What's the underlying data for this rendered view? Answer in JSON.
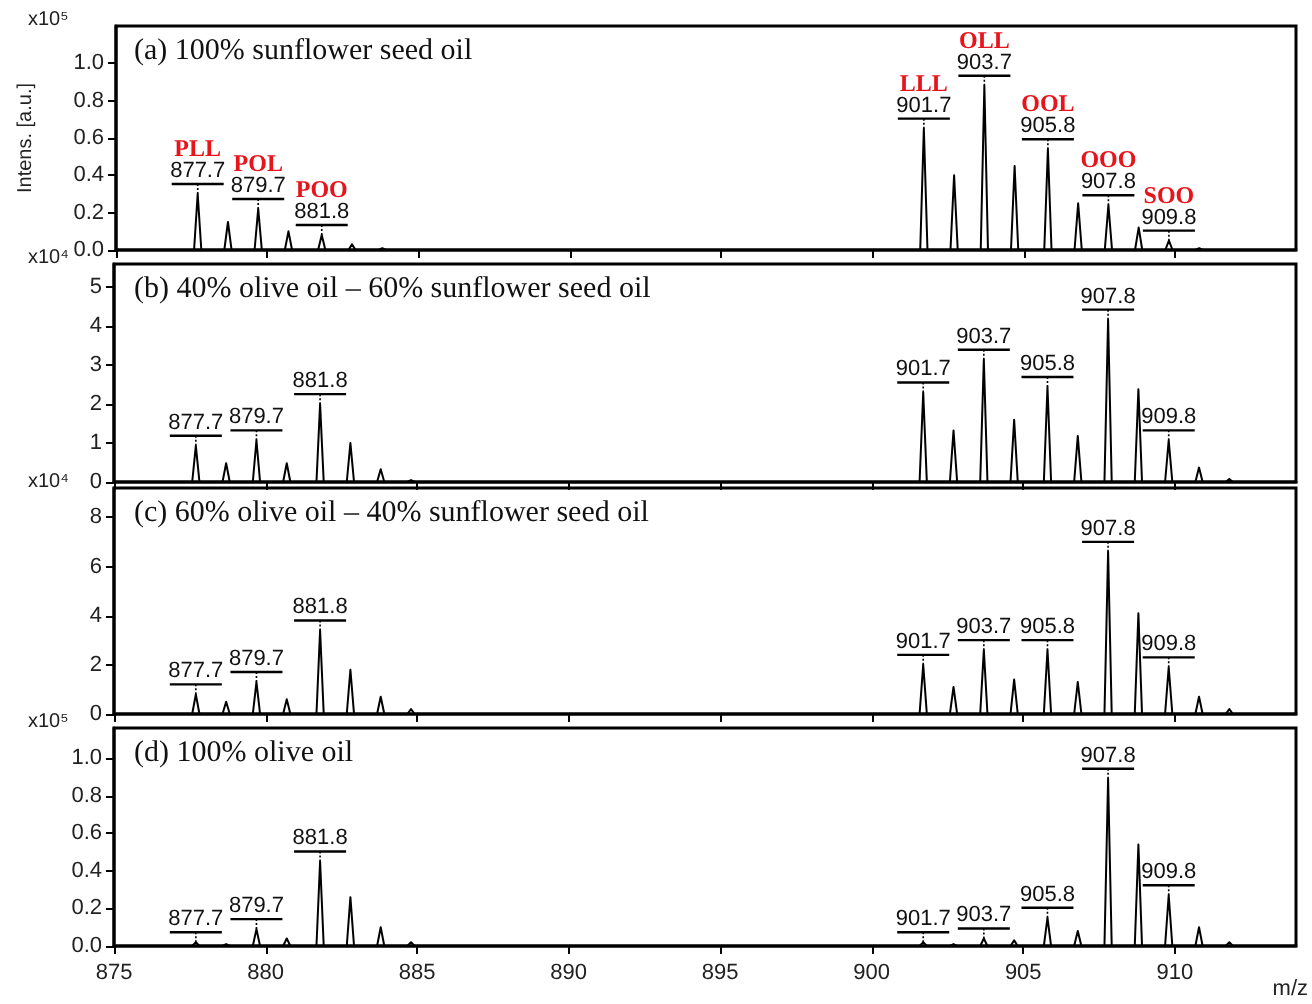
{
  "chart_data": [
    {
      "type": "line",
      "title": "(a) 100% sunflower seed oil",
      "ylabel": "Intens. [a.u.]",
      "xlim": [
        875,
        914
      ],
      "xticks": [
        875,
        880,
        885,
        890,
        895,
        900,
        905,
        910
      ],
      "ylim": [
        0,
        1.2
      ],
      "yticks": [
        {
          "value": 0,
          "label": "0.0"
        },
        {
          "value": 0.2,
          "label": "0.2"
        },
        {
          "value": 0.4,
          "label": "0.4"
        },
        {
          "value": 0.6,
          "label": "0.6"
        },
        {
          "value": 0.8,
          "label": "0.8"
        },
        {
          "value": 1,
          "label": "1.0"
        }
      ],
      "tick_labels": "y",
      "x": [
        875,
        877.58,
        877.7,
        877.82,
        878.58,
        878.7,
        878.82,
        879.58,
        879.7,
        879.82,
        880.58,
        880.7,
        880.82,
        881.68,
        881.8,
        881.92,
        882.68,
        882.8,
        882.92,
        883.68,
        883.8,
        883.92,
        901.58,
        901.7,
        901.82,
        902.58,
        902.7,
        902.82,
        903.58,
        903.7,
        903.82,
        904.58,
        904.7,
        904.82,
        905.68,
        905.8,
        905.92,
        906.68,
        906.8,
        906.92,
        907.68,
        907.8,
        907.92,
        908.68,
        908.8,
        908.92,
        909.68,
        909.8,
        909.92,
        910.68,
        910.8,
        910.92,
        914
      ],
      "series": [
        {
          "color": "#000000",
          "values": [
            0,
            0,
            0.3,
            0,
            0,
            0.15,
            0,
            0,
            0.22,
            0,
            0,
            0.1,
            0,
            0,
            0.08,
            0,
            0,
            0.03,
            0,
            0,
            0.01,
            0,
            0,
            0.65,
            0,
            0,
            0.4,
            0,
            0,
            0.88,
            0,
            0,
            0.45,
            0,
            0,
            0.54,
            0,
            0,
            0.25,
            0,
            0,
            0.24,
            0,
            0,
            0.12,
            0,
            0,
            0.05,
            0,
            0,
            0.01,
            0,
            0
          ]
        }
      ],
      "annotations": [
        "x10⁵",
        {
          "text": "877.7",
          "x": 877.7,
          "y": 0.3
        },
        {
          "text": "PLL",
          "x": 877.7,
          "y": 0.3
        },
        {
          "text": "879.7",
          "x": 879.7,
          "y": 0.22
        },
        {
          "text": "POL",
          "x": 879.7,
          "y": 0.22
        },
        {
          "text": "881.8",
          "x": 881.8,
          "y": 0.08
        },
        {
          "text": "POO",
          "x": 881.8,
          "y": 0.08
        },
        {
          "text": "901.7",
          "x": 901.7,
          "y": 0.65
        },
        {
          "text": "LLL",
          "x": 901.7,
          "y": 0.65
        },
        {
          "text": "903.7",
          "x": 903.7,
          "y": 0.88
        },
        {
          "text": "OLL",
          "x": 903.7,
          "y": 0.88
        },
        {
          "text": "905.8",
          "x": 905.8,
          "y": 0.54
        },
        {
          "text": "OOL",
          "x": 905.8,
          "y": 0.54
        },
        {
          "text": "907.8",
          "x": 907.8,
          "y": 0.24
        },
        {
          "text": "OOO",
          "x": 907.8,
          "y": 0.24
        },
        {
          "text": "909.8",
          "x": 909.8,
          "y": 0.05
        },
        {
          "text": "SOO",
          "x": 909.8,
          "y": 0.05
        }
      ]
    },
    {
      "type": "line",
      "title": "(b) 40% olive oil – 60% sunflower seed oil",
      "xlim": [
        875,
        914
      ],
      "xticks": [
        875,
        880,
        885,
        890,
        895,
        900,
        905,
        910
      ],
      "ylim": [
        0,
        5.6
      ],
      "yticks": [
        0,
        1,
        2,
        3,
        4,
        5
      ],
      "tick_labels": "y",
      "x": [
        875,
        877.58,
        877.7,
        877.82,
        878.58,
        878.7,
        878.82,
        879.58,
        879.7,
        879.82,
        880.58,
        880.7,
        880.82,
        881.68,
        881.8,
        881.92,
        882.68,
        882.8,
        882.92,
        883.68,
        883.8,
        883.92,
        884.68,
        884.8,
        884.92,
        901.58,
        901.7,
        901.82,
        902.58,
        902.7,
        902.82,
        903.58,
        903.7,
        903.82,
        904.58,
        904.7,
        904.82,
        905.68,
        905.8,
        905.92,
        906.68,
        906.8,
        906.92,
        907.68,
        907.8,
        907.92,
        908.68,
        908.8,
        908.92,
        909.68,
        909.8,
        909.92,
        910.68,
        910.8,
        910.92,
        911.68,
        911.8,
        911.92,
        914
      ],
      "series": [
        {
          "color": "#000000",
          "values": [
            0,
            0,
            0.93,
            0,
            0,
            0.48,
            0,
            0,
            1.07,
            0,
            0,
            0.48,
            0,
            0,
            2.0,
            0,
            0,
            1.0,
            0,
            0,
            0.33,
            0,
            0,
            0.05,
            0,
            0,
            2.3,
            0,
            0,
            1.32,
            0,
            0,
            3.14,
            0,
            0,
            1.6,
            0,
            0,
            2.44,
            0,
            0,
            1.18,
            0,
            0,
            4.17,
            0,
            0,
            2.38,
            0,
            0,
            1.07,
            0,
            0,
            0.37,
            0,
            0,
            0.08,
            0,
            0
          ]
        }
      ],
      "annotations": [
        "x10⁴",
        {
          "text": "877.7",
          "x": 877.7,
          "y": 0.93
        },
        {
          "text": "879.7",
          "x": 879.7,
          "y": 1.07
        },
        {
          "text": "881.8",
          "x": 881.8,
          "y": 2.0
        },
        {
          "text": "901.7",
          "x": 901.7,
          "y": 2.3
        },
        {
          "text": "903.7",
          "x": 903.7,
          "y": 3.14
        },
        {
          "text": "905.8",
          "x": 905.8,
          "y": 2.44
        },
        {
          "text": "907.8",
          "x": 907.8,
          "y": 4.17
        },
        {
          "text": "909.8",
          "x": 909.8,
          "y": 1.07
        }
      ]
    },
    {
      "type": "line",
      "title": "(c) 60% olive oil – 40% sunflower seed oil",
      "xlim": [
        875,
        914
      ],
      "xticks": [
        875,
        880,
        885,
        890,
        895,
        900,
        905,
        910
      ],
      "ylim": [
        0,
        9.2
      ],
      "yticks": [
        0,
        2,
        4,
        6,
        8
      ],
      "tick_labels": "y",
      "x": [
        875,
        877.58,
        877.7,
        877.82,
        878.58,
        878.7,
        878.82,
        879.58,
        879.7,
        879.82,
        880.58,
        880.7,
        880.82,
        881.68,
        881.8,
        881.92,
        882.68,
        882.8,
        882.92,
        883.68,
        883.8,
        883.92,
        884.68,
        884.8,
        884.92,
        901.58,
        901.7,
        901.82,
        902.58,
        902.7,
        902.82,
        903.58,
        903.7,
        903.82,
        904.58,
        904.7,
        904.82,
        905.68,
        905.8,
        905.92,
        906.68,
        906.8,
        906.92,
        907.68,
        907.8,
        907.92,
        908.68,
        908.8,
        908.92,
        909.68,
        909.8,
        909.92,
        910.68,
        910.8,
        910.92,
        911.68,
        911.8,
        911.92,
        914
      ],
      "series": [
        {
          "color": "#000000",
          "values": [
            0,
            0,
            0.8,
            0,
            0,
            0.5,
            0,
            0,
            1.3,
            0,
            0,
            0.6,
            0,
            0,
            3.4,
            0,
            0,
            1.8,
            0,
            0,
            0.7,
            0,
            0,
            0.2,
            0,
            0,
            2.0,
            0,
            0,
            1.1,
            0,
            0,
            2.6,
            0,
            0,
            1.4,
            0,
            0,
            2.6,
            0,
            0,
            1.3,
            0,
            0,
            6.6,
            0,
            0,
            4.1,
            0,
            0,
            1.9,
            0,
            0,
            0.7,
            0,
            0,
            0.2,
            0,
            0
          ]
        }
      ],
      "annotations": [
        "x10⁴",
        {
          "text": "877.7",
          "x": 877.7,
          "y": 0.8
        },
        {
          "text": "879.7",
          "x": 879.7,
          "y": 1.3
        },
        {
          "text": "881.8",
          "x": 881.8,
          "y": 3.4
        },
        {
          "text": "901.7",
          "x": 901.7,
          "y": 2.0
        },
        {
          "text": "903.7",
          "x": 903.7,
          "y": 2.6
        },
        {
          "text": "905.8",
          "x": 905.8,
          "y": 2.6
        },
        {
          "text": "907.8",
          "x": 907.8,
          "y": 6.6
        },
        {
          "text": "909.8",
          "x": 909.8,
          "y": 1.9
        }
      ]
    },
    {
      "type": "line",
      "title": "(d) 100% olive oil",
      "xlabel": "m/z",
      "xlim": [
        875,
        914
      ],
      "xticks": [
        875,
        880,
        885,
        890,
        895,
        900,
        905,
        910
      ],
      "ylim": [
        0,
        1.16
      ],
      "yticks": [
        {
          "value": 0,
          "label": "0.0"
        },
        {
          "value": 0.2,
          "label": "0.2"
        },
        {
          "value": 0.4,
          "label": "0.4"
        },
        {
          "value": 0.6,
          "label": "0.6"
        },
        {
          "value": 0.8,
          "label": "0.8"
        },
        {
          "value": 1,
          "label": "1.0"
        }
      ],
      "x": [
        875,
        877.58,
        877.7,
        877.82,
        878.58,
        878.7,
        878.82,
        879.58,
        879.7,
        879.82,
        880.58,
        880.7,
        880.82,
        881.68,
        881.8,
        881.92,
        882.68,
        882.8,
        882.92,
        883.68,
        883.8,
        883.92,
        884.68,
        884.8,
        884.92,
        901.58,
        901.7,
        901.82,
        902.58,
        902.7,
        902.82,
        903.58,
        903.7,
        903.82,
        904.58,
        904.7,
        904.82,
        905.68,
        905.8,
        905.92,
        906.68,
        906.8,
        906.92,
        907.68,
        907.8,
        907.92,
        908.68,
        908.8,
        908.92,
        909.68,
        909.8,
        909.92,
        910.68,
        910.8,
        910.92,
        911.68,
        911.8,
        911.92,
        914
      ],
      "series": [
        {
          "color": "#000000",
          "values": [
            0,
            0,
            0.02,
            0,
            0,
            0.01,
            0,
            0,
            0.09,
            0,
            0,
            0.04,
            0,
            0,
            0.45,
            0,
            0,
            0.26,
            0,
            0,
            0.1,
            0,
            0,
            0.02,
            0,
            0,
            0.02,
            0,
            0,
            0.01,
            0,
            0,
            0.04,
            0,
            0,
            0.03,
            0,
            0,
            0.15,
            0,
            0,
            0.08,
            0,
            0,
            0.89,
            0,
            0,
            0.54,
            0,
            0,
            0.27,
            0,
            0,
            0.1,
            0,
            0,
            0.02,
            0,
            0
          ]
        }
      ],
      "annotations": [
        "x10⁵",
        {
          "text": "877.7",
          "x": 877.7,
          "y": 0.02
        },
        {
          "text": "879.7",
          "x": 879.7,
          "y": 0.09
        },
        {
          "text": "881.8",
          "x": 881.8,
          "y": 0.45
        },
        {
          "text": "901.7",
          "x": 901.7,
          "y": 0.02
        },
        {
          "text": "903.7",
          "x": 903.7,
          "y": 0.04
        },
        {
          "text": "905.8",
          "x": 905.8,
          "y": 0.15
        },
        {
          "text": "907.8",
          "x": 907.8,
          "y": 0.89
        },
        {
          "text": "909.8",
          "x": 909.8,
          "y": 0.27
        }
      ]
    }
  ]
}
